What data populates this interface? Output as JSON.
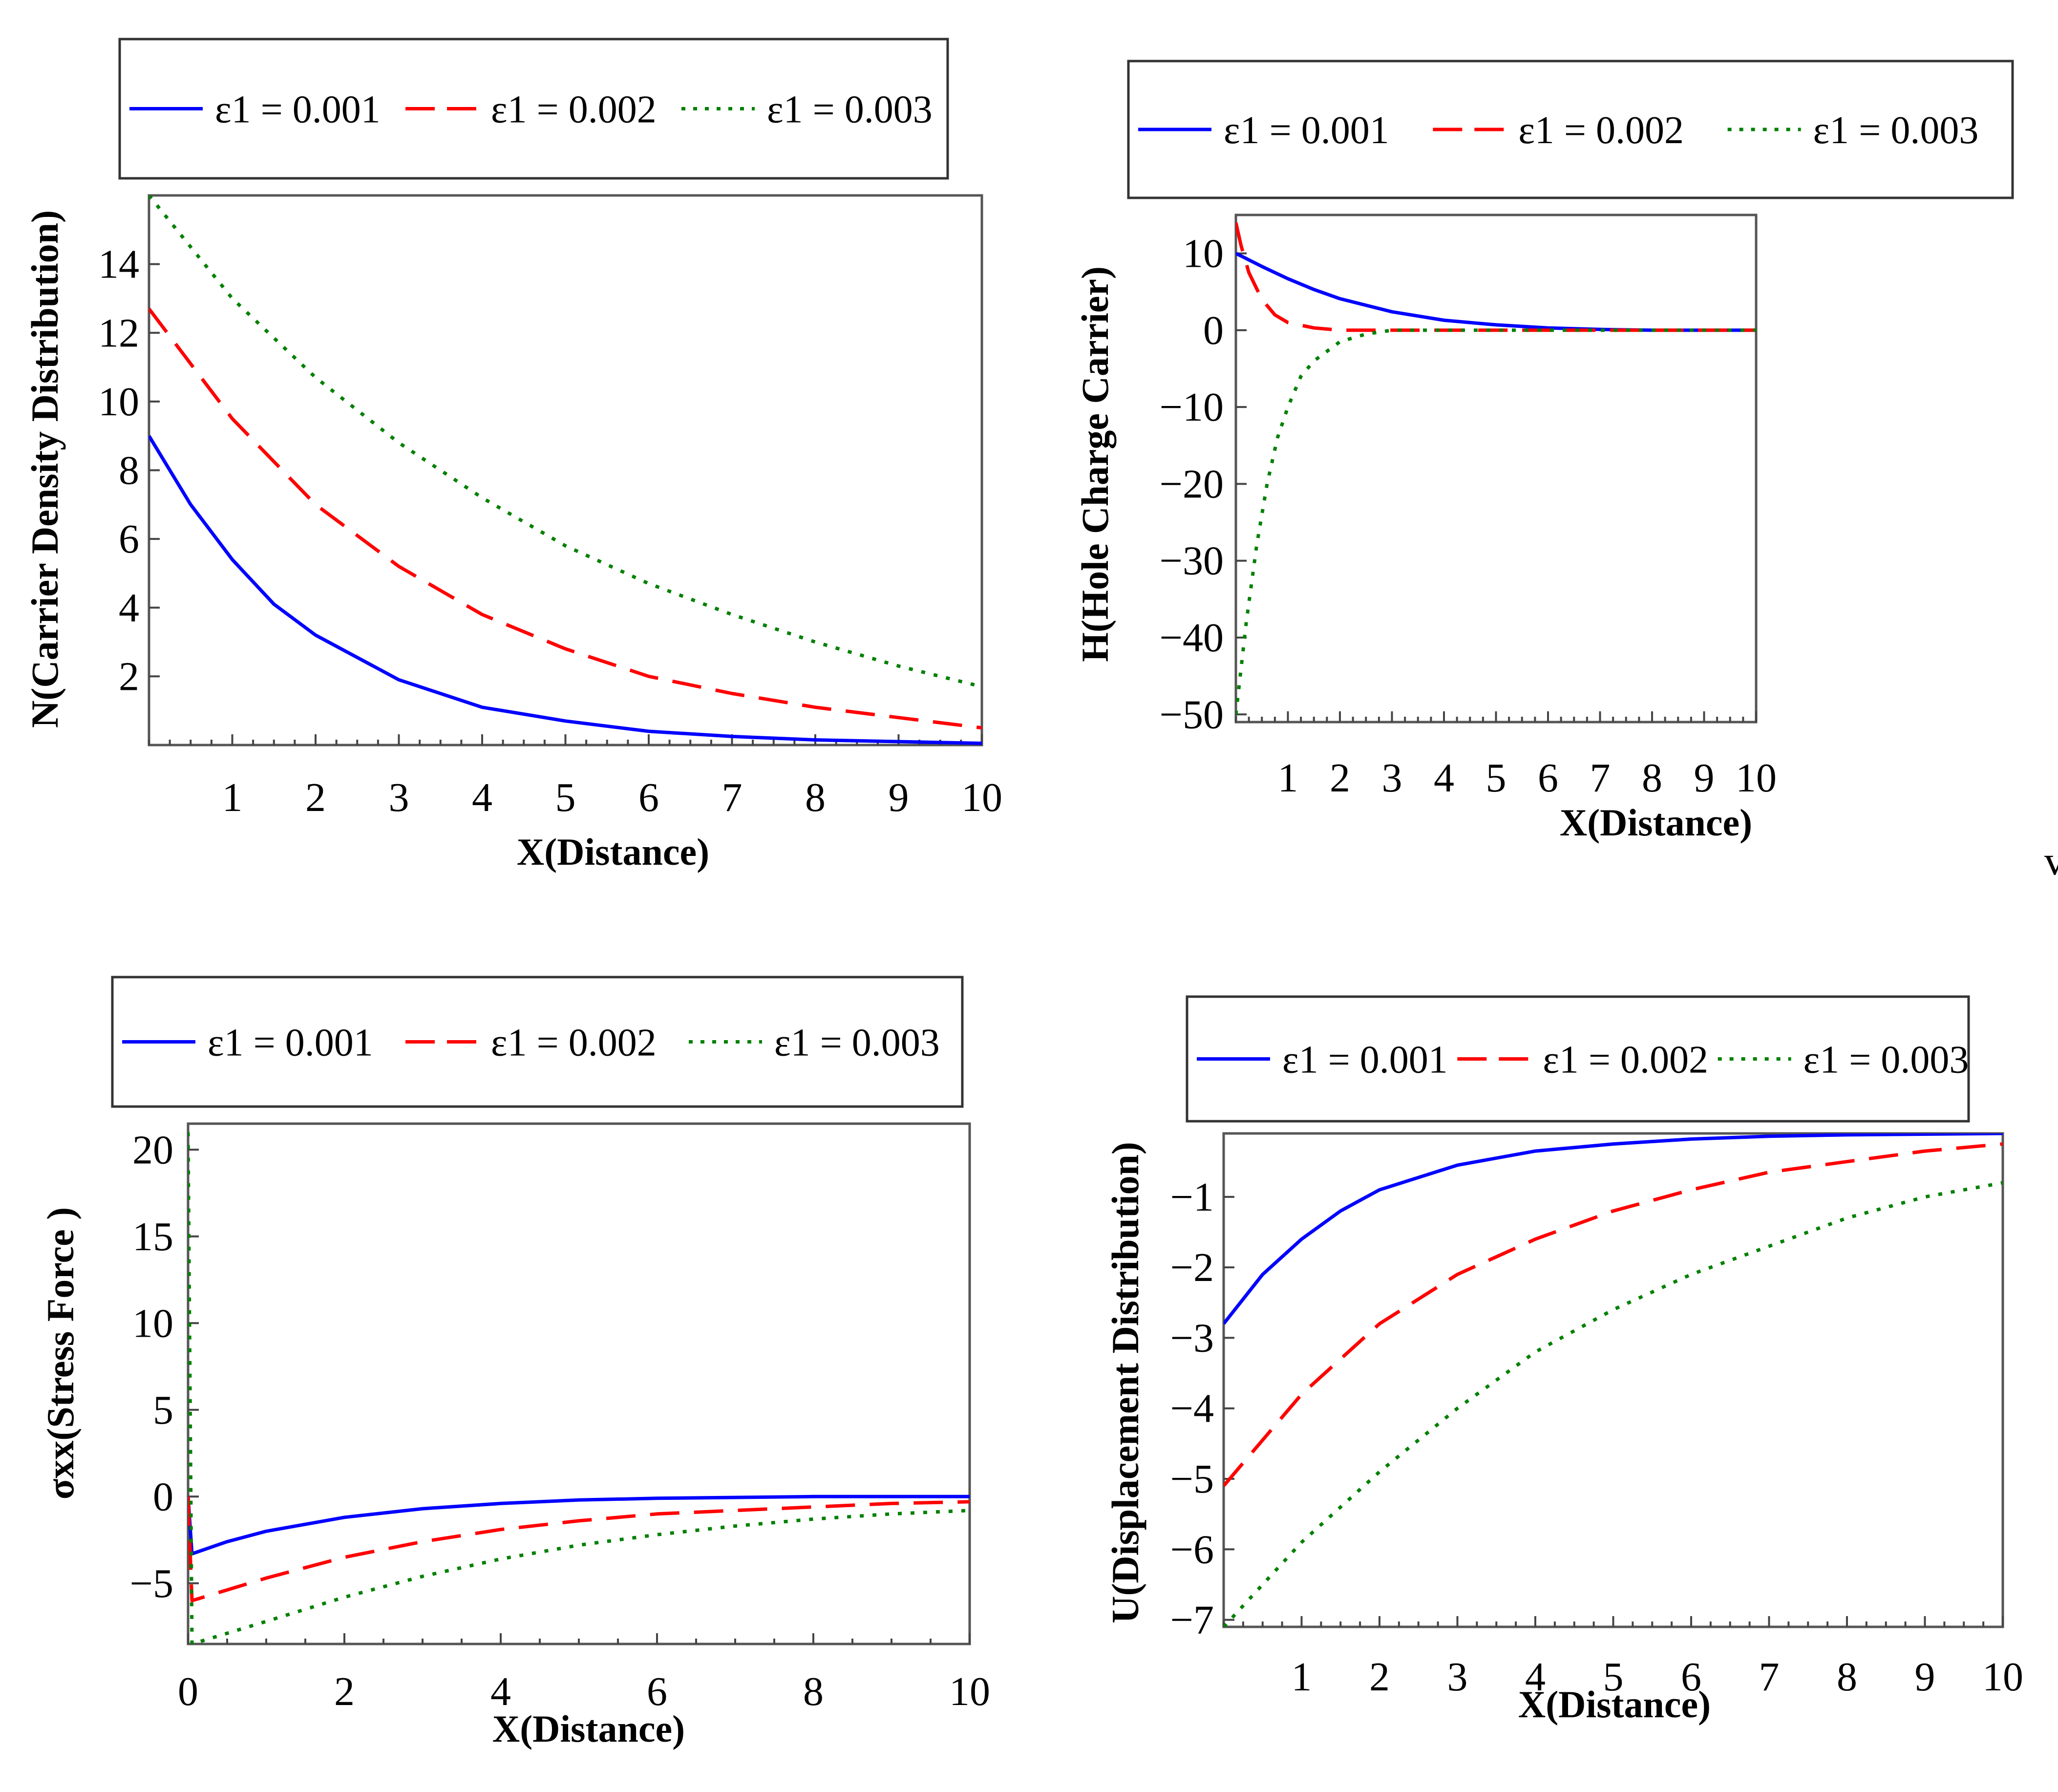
{
  "charts": [
    {
      "type": "line",
      "xlabel": "X(Distance)",
      "ylabel": "N(Carrier Density Distribution)",
      "xlim": [
        0,
        10
      ],
      "ylim": [
        0,
        16
      ],
      "xticks": [
        "1",
        "2",
        "3",
        "4",
        "5",
        "6",
        "7",
        "8",
        "9",
        "10"
      ],
      "yticks": [
        "2",
        "4",
        "6",
        "8",
        "10",
        "12",
        "14"
      ],
      "legend": [
        "ε1 = 0.001",
        "ε1 = 0.002",
        "ε1 = 0.003"
      ],
      "series": [
        {
          "name": "ε1 = 0.001",
          "color": "#0000ff",
          "style": "solid",
          "x": [
            0,
            0.5,
            1,
            1.5,
            2,
            3,
            4,
            5,
            6,
            7,
            8,
            9,
            10
          ],
          "y": [
            9.0,
            7.0,
            5.4,
            4.1,
            3.2,
            1.9,
            1.1,
            0.7,
            0.4,
            0.25,
            0.15,
            0.1,
            0.05
          ]
        },
        {
          "name": "ε1 = 0.002",
          "color": "#ff0000",
          "style": "dashed",
          "x": [
            0,
            1,
            2,
            3,
            4,
            5,
            6,
            7,
            8,
            9,
            10
          ],
          "y": [
            12.7,
            9.5,
            7.0,
            5.2,
            3.8,
            2.8,
            2.0,
            1.5,
            1.1,
            0.8,
            0.5
          ]
        },
        {
          "name": "ε1 = 0.003",
          "color": "#008000",
          "style": "dotted",
          "x": [
            0,
            1,
            2,
            3,
            4,
            5,
            6,
            7,
            8,
            9,
            10
          ],
          "y": [
            16.0,
            13.0,
            10.7,
            8.8,
            7.2,
            5.8,
            4.7,
            3.8,
            3.0,
            2.3,
            1.7
          ]
        }
      ]
    },
    {
      "type": "line",
      "xlabel": "X(Distance)",
      "ylabel": "H(Hole Charge Carrier)",
      "xlim": [
        0,
        10
      ],
      "ylim": [
        -51,
        15
      ],
      "xticks": [
        "1",
        "2",
        "3",
        "4",
        "5",
        "6",
        "7",
        "8",
        "9",
        "10"
      ],
      "yticks": [
        "10",
        "0",
        "−10",
        "−20",
        "−30",
        "−40",
        "−50"
      ],
      "legend": [
        "ε1 = 0.001",
        "ε1 = 0.002",
        "ε1 = 0.003"
      ],
      "series": [
        {
          "name": "ε1 = 0.001",
          "color": "#0000ff",
          "style": "solid",
          "x": [
            0,
            0.5,
            1,
            1.5,
            2,
            3,
            4,
            5,
            6,
            7,
            8,
            10
          ],
          "y": [
            10,
            8.3,
            6.7,
            5.3,
            4.1,
            2.4,
            1.3,
            0.7,
            0.3,
            0.1,
            0,
            0
          ]
        },
        {
          "name": "ε1 = 0.002",
          "color": "#ff0000",
          "style": "dashed",
          "x": [
            0,
            0.1,
            0.25,
            0.5,
            0.75,
            1,
            1.5,
            2,
            3,
            10
          ],
          "y": [
            14,
            11,
            7.5,
            4,
            2,
            1,
            0.3,
            0,
            0,
            0
          ]
        },
        {
          "name": "ε1 = 0.003",
          "color": "#008000",
          "style": "dotted",
          "x": [
            0,
            0.2,
            0.4,
            0.6,
            0.8,
            1,
            1.25,
            1.5,
            2,
            2.5,
            3,
            4,
            10
          ],
          "y": [
            -50,
            -38,
            -28,
            -20,
            -14,
            -10,
            -6,
            -4,
            -1.5,
            -0.5,
            0,
            0,
            0
          ]
        }
      ]
    },
    {
      "type": "line",
      "xlabel": "X(Distance)",
      "ylabel": "σxx(Stress Force )",
      "xlim": [
        0,
        10
      ],
      "ylim": [
        -8.5,
        21.5
      ],
      "xticks": [
        "0",
        "2",
        "4",
        "6",
        "8",
        "10"
      ],
      "yticks": [
        "20",
        "15",
        "10",
        "5",
        "0",
        "−5"
      ],
      "legend": [
        "ε1 = 0.001",
        "ε1 = 0.002",
        "ε1 = 0.003"
      ],
      "series": [
        {
          "name": "ε1 = 0.001",
          "color": "#0000ff",
          "style": "solid",
          "x": [
            0,
            0.05,
            0.5,
            1,
            2,
            3,
            4,
            5,
            6,
            8,
            10
          ],
          "y": [
            0,
            -3.3,
            -2.6,
            -2.0,
            -1.2,
            -0.7,
            -0.4,
            -0.2,
            -0.1,
            0,
            0
          ]
        },
        {
          "name": "ε1 = 0.002",
          "color": "#ff0000",
          "style": "dashed",
          "x": [
            0,
            0.05,
            1,
            2,
            3,
            4,
            5,
            6,
            7,
            8,
            9,
            10
          ],
          "y": [
            0,
            -6.0,
            -4.7,
            -3.5,
            -2.6,
            -1.9,
            -1.4,
            -1.0,
            -0.8,
            -0.6,
            -0.4,
            -0.3
          ]
        },
        {
          "name": "ε1 = 0.003",
          "color": "#008000",
          "style": "dotted",
          "x": [
            0,
            0.05,
            1,
            2,
            3,
            4,
            5,
            6,
            7,
            8,
            9,
            10
          ],
          "y": [
            21,
            -8.5,
            -7.2,
            -5.8,
            -4.6,
            -3.6,
            -2.8,
            -2.2,
            -1.7,
            -1.3,
            -1.0,
            -0.8
          ]
        }
      ]
    },
    {
      "type": "line",
      "xlabel": "X(Distance)",
      "ylabel": "U(Displacement Distribution)",
      "xlim": [
        0,
        10
      ],
      "ylim": [
        -7.1,
        -0.1
      ],
      "xticks": [
        "1",
        "2",
        "3",
        "4",
        "5",
        "6",
        "7",
        "8",
        "9",
        "10"
      ],
      "yticks": [
        "−1",
        "−2",
        "−3",
        "−4",
        "−5",
        "−6",
        "−7"
      ],
      "legend": [
        "ε1 = 0.001",
        "ε1 = 0.002",
        "ε1 = 0.003"
      ],
      "series": [
        {
          "name": "ε1 = 0.001",
          "color": "#0000ff",
          "style": "solid",
          "x": [
            0,
            0.5,
            1,
            1.5,
            2,
            3,
            4,
            5,
            6,
            7,
            8,
            10
          ],
          "y": [
            -2.8,
            -2.1,
            -1.6,
            -1.2,
            -0.9,
            -0.55,
            -0.35,
            -0.25,
            -0.18,
            -0.14,
            -0.12,
            -0.1
          ]
        },
        {
          "name": "ε1 = 0.002",
          "color": "#ff0000",
          "style": "dashed",
          "x": [
            0,
            1,
            2,
            3,
            4,
            5,
            6,
            7,
            8,
            9,
            10
          ],
          "y": [
            -5.1,
            -3.8,
            -2.8,
            -2.1,
            -1.6,
            -1.2,
            -0.9,
            -0.65,
            -0.5,
            -0.35,
            -0.25
          ]
        },
        {
          "name": "ε1 = 0.003",
          "color": "#008000",
          "style": "dotted",
          "x": [
            0,
            1,
            2,
            3,
            4,
            5,
            6,
            7,
            8,
            9,
            10
          ],
          "y": [
            -7.1,
            -5.9,
            -4.9,
            -4.0,
            -3.2,
            -2.6,
            -2.1,
            -1.7,
            -1.3,
            -1.0,
            -0.8
          ]
        }
      ]
    }
  ],
  "chart_data": [
    {
      "type": "line",
      "title": "",
      "xlabel": "X(Distance)",
      "ylabel": "N(Carrier Density Distribution)"
    },
    {
      "type": "line",
      "title": "",
      "xlabel": "X(Distance)",
      "ylabel": "H(Hole Charge Carrier)"
    },
    {
      "type": "line",
      "title": "",
      "xlabel": "X(Distance)",
      "ylabel": "σxx(Stress Force )"
    },
    {
      "type": "line",
      "title": "",
      "xlabel": "X(Distance)",
      "ylabel": "U(Displacement Distribution)"
    }
  ],
  "stray_text": "v"
}
